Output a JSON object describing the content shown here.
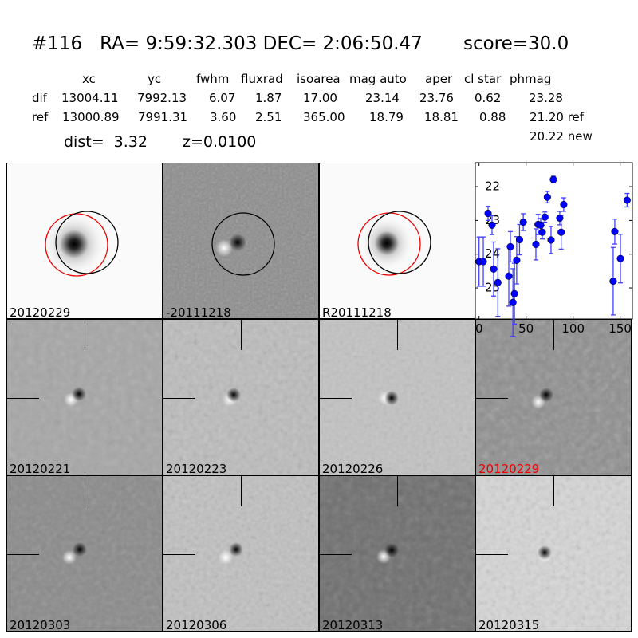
{
  "header": {
    "title": "#116   RA= 9:59:32.303 DEC= 2:06:50.47       score=30.0",
    "columns": [
      "xc",
      "yc",
      "fwhm",
      "fluxrad",
      "isoarea",
      "mag auto",
      "aper",
      "cl star",
      "phmag"
    ],
    "rows": [
      {
        "label": "dif",
        "values": [
          "13004.11",
          "7992.13",
          "6.07",
          "1.87",
          "17.00",
          "23.14",
          "23.76",
          "0.62",
          "23.28"
        ]
      },
      {
        "label": "ref",
        "values": [
          "13000.89",
          "7991.31",
          "3.60",
          "2.51",
          "365.00",
          "18.79",
          "18.81",
          "0.88",
          "21.20 ref"
        ]
      }
    ],
    "extra_phmag": "20.22 new",
    "dist": "dist=  3.32",
    "z": "z=0.0100"
  },
  "top_panels": [
    {
      "label": "20120229",
      "bg": "#fafafa"
    },
    {
      "label": "-20111218",
      "bg": "#8c8c8c"
    },
    {
      "label": "R20111218",
      "bg": "#fafafa"
    }
  ],
  "stamps": [
    {
      "label": "20120221",
      "bg": "#a6a6a6",
      "highlight": false
    },
    {
      "label": "20120223",
      "bg": "#bcbcbc",
      "highlight": false
    },
    {
      "label": "20120226",
      "bg": "#c2c2c2",
      "highlight": false
    },
    {
      "label": "20120229",
      "bg": "#8e8e8e",
      "highlight": true
    },
    {
      "label": "20120303",
      "bg": "#8a8a8a",
      "highlight": false
    },
    {
      "label": "20120306",
      "bg": "#c0c0c0",
      "highlight": false
    },
    {
      "label": "20120313",
      "bg": "#6e6e6e",
      "highlight": false
    },
    {
      "label": "20120315",
      "bg": "#d6d6d6",
      "highlight": false
    }
  ],
  "colors": {
    "points": "#0000ff",
    "errorbars": "#4040ff",
    "highlight": "#ff0000"
  },
  "chart_data": {
    "type": "scatter",
    "title": "",
    "xlabel": "",
    "ylabel": "",
    "xlim": [
      -4,
      163
    ],
    "ylim": [
      25.92,
      21.29
    ],
    "y_inverted": true,
    "xticks": [
      0,
      50,
      100,
      150
    ],
    "yticks": [
      22,
      23,
      24,
      25
    ],
    "x": [
      0,
      4.5,
      9.6,
      13.8,
      15.5,
      20,
      31.6,
      33.3,
      36,
      37.6,
      40,
      43,
      47,
      60.4,
      62.7,
      65.5,
      67.2,
      70,
      72.6,
      76.5,
      79,
      85.8,
      87.3,
      90,
      142.6,
      144.3,
      150.3,
      157.4
    ],
    "y": [
      24.22,
      24.22,
      22.79,
      23.14,
      24.44,
      24.84,
      24.65,
      23.78,
      25.43,
      25.17,
      24.18,
      23.57,
      23.05,
      23.71,
      23.12,
      23.14,
      23.35,
      22.9,
      22.31,
      23.58,
      21.79,
      22.93,
      23.35,
      22.53,
      24.8,
      23.33,
      24.13,
      22.4
    ],
    "yerr": [
      0.73,
      0.73,
      0.21,
      0.28,
      0.8,
      1.0,
      0.89,
      0.45,
      1.0,
      0.9,
      0.7,
      0.45,
      0.25,
      0.46,
      0.3,
      0.2,
      0.2,
      0.15,
      0.17,
      0.4,
      0.1,
      0.2,
      0.5,
      0.2,
      1.0,
      0.37,
      0.72,
      0.2
    ]
  }
}
